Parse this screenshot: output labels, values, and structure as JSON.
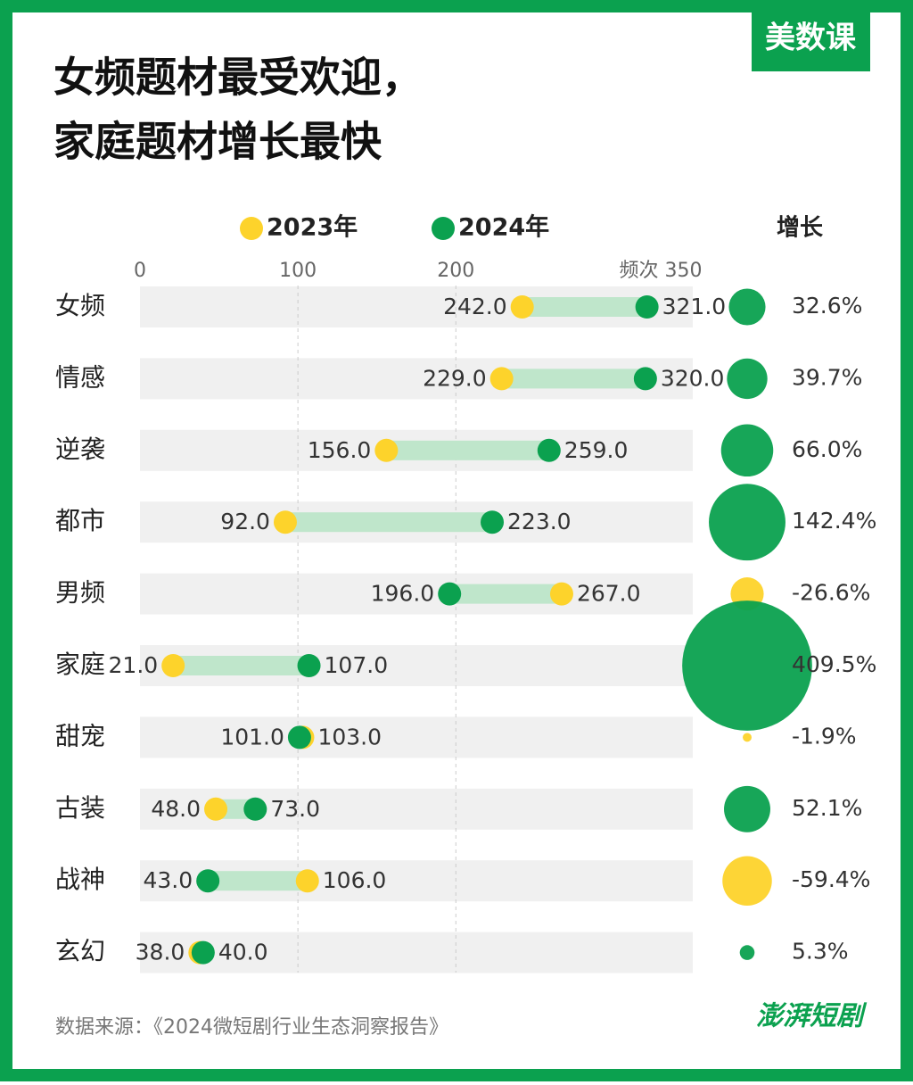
{
  "chart_data": {
    "type": "dumbbell",
    "title_lines": [
      "女频题材最受欢迎，",
      "家庭题材增长最快"
    ],
    "brand": "美数课",
    "categories": [
      "女频",
      "情感",
      "逆袭",
      "都市",
      "男频",
      "家庭",
      "甜宠",
      "古装",
      "战神",
      "玄幻"
    ],
    "series": [
      {
        "name": "2023年",
        "color": "#fdd32b",
        "values": [
          242,
          229,
          156,
          92,
          267,
          21,
          103,
          48,
          106,
          38
        ],
        "value_labels": [
          "242.0",
          "229.0",
          "156.0",
          "92.0",
          "267.0",
          "21.0",
          "103.0",
          "48.0",
          "106.0",
          "38.0"
        ]
      },
      {
        "name": "2024年",
        "color": "#0ba14f",
        "values": [
          321,
          320,
          259,
          223,
          196,
          107,
          101,
          73,
          43,
          40
        ],
        "value_labels": [
          "321.0",
          "320.0",
          "259.0",
          "223.0",
          "196.0",
          "107.0",
          "101.0",
          "73.0",
          "43.0",
          "40.0"
        ]
      }
    ],
    "growth": {
      "name": "增长",
      "values": [
        32.6,
        39.7,
        66.0,
        142.4,
        -26.6,
        409.5,
        -1.9,
        52.1,
        -59.4,
        5.3
      ],
      "value_labels": [
        "32.6%",
        "39.7%",
        "66.0%",
        "142.4%",
        "-26.6%",
        "409.5%",
        "-1.9%",
        "52.1%",
        "-59.4%",
        "5.3%"
      ]
    },
    "xlim": [
      0,
      350
    ],
    "xticks": [
      0,
      100,
      200,
      {
        "value": 350,
        "label": "频次 350"
      }
    ],
    "grid": true,
    "source": "数据来源：《2024微短剧行业生态洞察报告》",
    "logo": "澎湃短剧"
  }
}
